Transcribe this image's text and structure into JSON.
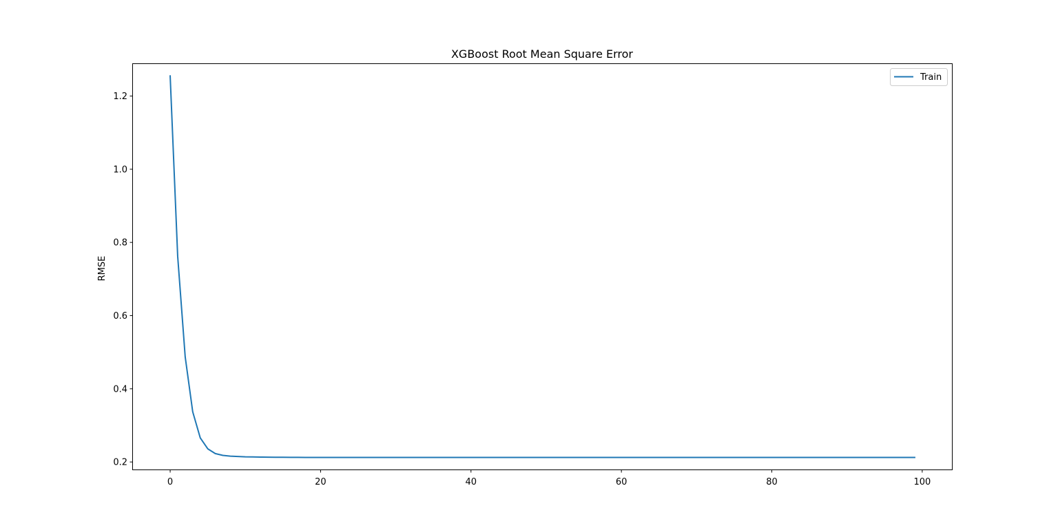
{
  "chart_data": {
    "type": "line",
    "title": "XGBoost Root Mean Square Error",
    "xlabel": "",
    "ylabel": "RMSE",
    "xlim": [
      -4.95,
      103.95
    ],
    "ylim": [
      0.1795,
      1.2875
    ],
    "xticks": [
      0,
      20,
      40,
      60,
      80,
      100
    ],
    "yticks": [
      0.2,
      0.4,
      0.6,
      0.8,
      1.0,
      1.2
    ],
    "ytick_labels": [
      "0.2",
      "0.4",
      "0.6",
      "0.8",
      "1.0",
      "1.2"
    ],
    "grid": false,
    "legend": {
      "placement": "top-right",
      "entries": [
        "Train"
      ]
    },
    "series": [
      {
        "name": "Train",
        "color": "#1f77b4",
        "x_start": 0,
        "x_step": 1,
        "values": [
          1.255,
          0.762,
          0.487,
          0.337,
          0.266,
          0.236,
          0.223,
          0.218,
          0.216,
          0.215,
          0.214,
          0.2138,
          0.2134,
          0.2131,
          0.2129,
          0.2128,
          0.2127,
          0.2126,
          0.2125,
          0.2125,
          0.2125,
          0.2125,
          0.2125,
          0.2125,
          0.2125,
          0.2125,
          0.2125,
          0.2125,
          0.2125,
          0.2125,
          0.2125,
          0.2125,
          0.2125,
          0.2125,
          0.2125,
          0.2125,
          0.2125,
          0.2125,
          0.2125,
          0.2125,
          0.2125,
          0.2125,
          0.2125,
          0.2125,
          0.2125,
          0.2125,
          0.2125,
          0.2125,
          0.2125,
          0.2125,
          0.2125,
          0.2125,
          0.2125,
          0.2125,
          0.2125,
          0.2125,
          0.2125,
          0.2125,
          0.2125,
          0.2125,
          0.2125,
          0.2125,
          0.2125,
          0.2125,
          0.2125,
          0.2125,
          0.2125,
          0.2125,
          0.2125,
          0.2125,
          0.2125,
          0.2125,
          0.2125,
          0.2125,
          0.2125,
          0.2125,
          0.2125,
          0.2125,
          0.2125,
          0.2125,
          0.2125,
          0.2125,
          0.2125,
          0.2125,
          0.2125,
          0.2125,
          0.2125,
          0.2125,
          0.2125,
          0.2125,
          0.2125,
          0.2125,
          0.2125,
          0.2125,
          0.2125,
          0.2125,
          0.2125,
          0.2125,
          0.2125,
          0.2125
        ]
      }
    ]
  }
}
